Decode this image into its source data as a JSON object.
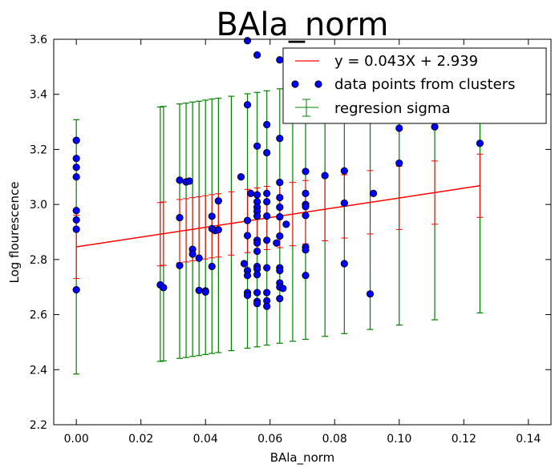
{
  "chart_data": {
    "type": "scatter",
    "title": "BAla_norm",
    "xlabel": "BAla_norm",
    "ylabel": "Log flourescence",
    "xlim": [
      -0.007,
      0.147
    ],
    "ylim": [
      2.2,
      3.6
    ],
    "xticks": [
      0.0,
      0.02,
      0.04,
      0.06,
      0.08,
      0.1,
      0.12,
      0.14
    ],
    "xtick_labels": [
      "0.00",
      "0.02",
      "0.04",
      "0.06",
      "0.08",
      "0.10",
      "0.12",
      "0.14"
    ],
    "yticks": [
      2.2,
      2.4,
      2.6,
      2.8,
      3.0,
      3.2,
      3.4,
      3.6
    ],
    "ytick_labels": [
      "2.2",
      "2.4",
      "2.6",
      "2.8",
      "3.0",
      "3.2",
      "3.4",
      "3.6"
    ],
    "grid": false,
    "legend_position": "top-right",
    "colors": {
      "fit": "#ff0000",
      "points": "#0000ff",
      "sigma": "#008000"
    },
    "series": [
      {
        "name": "y = 0.043X + 2.939",
        "kind": "line",
        "x": [
          0.0,
          0.125
        ],
        "y": [
          2.846,
          3.068
        ]
      },
      {
        "name": "data points from clusters",
        "kind": "points",
        "points": [
          [
            0.0,
            3.233
          ],
          [
            0.0,
            3.167
          ],
          [
            0.0,
            3.135
          ],
          [
            0.0,
            3.1
          ],
          [
            0.0,
            2.978
          ],
          [
            0.0,
            2.944
          ],
          [
            0.0,
            2.91
          ],
          [
            0.0,
            2.69
          ],
          [
            0.026,
            2.708
          ],
          [
            0.027,
            2.698
          ],
          [
            0.032,
            3.088
          ],
          [
            0.032,
            2.952
          ],
          [
            0.032,
            2.778
          ],
          [
            0.034,
            3.082
          ],
          [
            0.035,
            3.085
          ],
          [
            0.036,
            2.837
          ],
          [
            0.036,
            2.82
          ],
          [
            0.038,
            2.805
          ],
          [
            0.038,
            2.688
          ],
          [
            0.04,
            2.686
          ],
          [
            0.04,
            2.682
          ],
          [
            0.042,
            2.957
          ],
          [
            0.042,
            2.912
          ],
          [
            0.042,
            2.775
          ],
          [
            0.043,
            2.905
          ],
          [
            0.044,
            3.013
          ],
          [
            0.044,
            2.908
          ],
          [
            0.051,
            3.1
          ],
          [
            0.052,
            2.785
          ],
          [
            0.053,
            3.595
          ],
          [
            0.053,
            3.362
          ],
          [
            0.053,
            2.942
          ],
          [
            0.053,
            2.887
          ],
          [
            0.053,
            2.76
          ],
          [
            0.053,
            2.742
          ],
          [
            0.053,
            2.68
          ],
          [
            0.053,
            2.67
          ],
          [
            0.054,
            3.04
          ],
          [
            0.056,
            3.543
          ],
          [
            0.056,
            3.212
          ],
          [
            0.056,
            3.035
          ],
          [
            0.056,
            3.01
          ],
          [
            0.056,
            2.99
          ],
          [
            0.056,
            2.975
          ],
          [
            0.056,
            2.958
          ],
          [
            0.056,
            2.87
          ],
          [
            0.056,
            2.86
          ],
          [
            0.056,
            2.83
          ],
          [
            0.056,
            2.775
          ],
          [
            0.056,
            2.765
          ],
          [
            0.056,
            2.745
          ],
          [
            0.056,
            2.68
          ],
          [
            0.056,
            2.648
          ],
          [
            0.056,
            2.64
          ],
          [
            0.059,
            3.29
          ],
          [
            0.059,
            3.188
          ],
          [
            0.059,
            3.04
          ],
          [
            0.059,
            3.01
          ],
          [
            0.059,
            2.958
          ],
          [
            0.059,
            2.87
          ],
          [
            0.059,
            2.77
          ],
          [
            0.059,
            2.68
          ],
          [
            0.059,
            2.65
          ],
          [
            0.059,
            2.63
          ],
          [
            0.062,
            2.86
          ],
          [
            0.063,
            3.525
          ],
          [
            0.063,
            3.24
          ],
          [
            0.063,
            3.08
          ],
          [
            0.063,
            3.025
          ],
          [
            0.063,
            2.99
          ],
          [
            0.063,
            2.955
          ],
          [
            0.063,
            2.885
          ],
          [
            0.063,
            2.77
          ],
          [
            0.063,
            2.76
          ],
          [
            0.063,
            2.715
          ],
          [
            0.063,
            2.7
          ],
          [
            0.063,
            2.658
          ],
          [
            0.064,
            2.695
          ],
          [
            0.065,
            2.928
          ],
          [
            0.071,
            3.12
          ],
          [
            0.071,
            3.04
          ],
          [
            0.071,
            3.0
          ],
          [
            0.071,
            2.992
          ],
          [
            0.071,
            2.96
          ],
          [
            0.071,
            2.845
          ],
          [
            0.071,
            2.835
          ],
          [
            0.071,
            2.742
          ],
          [
            0.077,
            3.105
          ],
          [
            0.083,
            3.122
          ],
          [
            0.083,
            3.005
          ],
          [
            0.083,
            2.785
          ],
          [
            0.091,
            2.675
          ],
          [
            0.092,
            3.04
          ],
          [
            0.1,
            3.277
          ],
          [
            0.1,
            3.15
          ],
          [
            0.111,
            3.282
          ],
          [
            0.125,
            3.222
          ]
        ]
      },
      {
        "name": "regresion sigma",
        "kind": "errorbar",
        "bars": [
          [
            0.0,
            2.846,
            0.462
          ],
          [
            0.026,
            2.892,
            0.462
          ],
          [
            0.027,
            2.894,
            0.462
          ],
          [
            0.032,
            2.903,
            0.462
          ],
          [
            0.034,
            2.906,
            0.462
          ],
          [
            0.036,
            2.91,
            0.462
          ],
          [
            0.038,
            2.913,
            0.462
          ],
          [
            0.04,
            2.917,
            0.462
          ],
          [
            0.042,
            2.921,
            0.462
          ],
          [
            0.044,
            2.924,
            0.462
          ],
          [
            0.048,
            2.931,
            0.462
          ],
          [
            0.053,
            2.94,
            0.462
          ],
          [
            0.056,
            2.945,
            0.462
          ],
          [
            0.059,
            2.951,
            0.462
          ],
          [
            0.063,
            2.958,
            0.462
          ],
          [
            0.067,
            2.965,
            0.462
          ],
          [
            0.071,
            2.972,
            0.462
          ],
          [
            0.077,
            2.983,
            0.462
          ],
          [
            0.083,
            2.993,
            0.462
          ],
          [
            0.091,
            3.008,
            0.462
          ],
          [
            0.1,
            3.024,
            0.462
          ],
          [
            0.111,
            3.043,
            0.462
          ],
          [
            0.125,
            3.068,
            0.462
          ]
        ]
      }
    ]
  }
}
